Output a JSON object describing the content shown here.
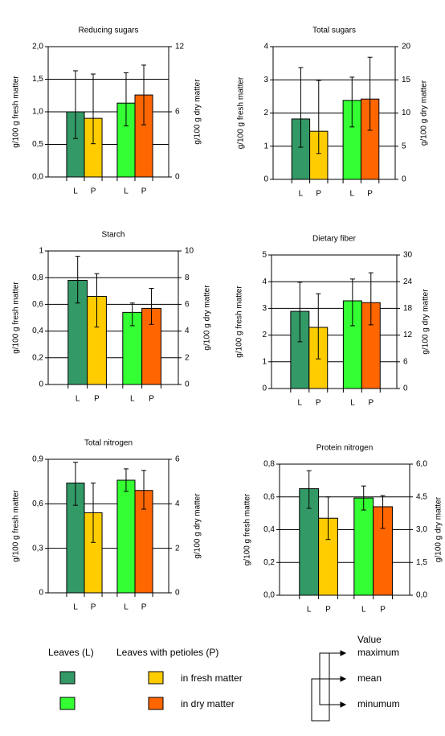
{
  "chart_data": [
    {
      "type": "bar",
      "title": "Reducing sugars",
      "ylabel": "g/100 g fresh matter",
      "y2label": "g/100 g dry matter",
      "categories": [
        "L",
        "P",
        "L",
        "P"
      ],
      "colors": [
        "#339966",
        "#ffcc00",
        "#33ff33",
        "#ff6600"
      ],
      "ylim": [
        0,
        2
      ],
      "yticks": [
        {
          "value": 0,
          "label": "0,0"
        },
        {
          "value": 0.5,
          "label": "0,5"
        },
        {
          "value": 1,
          "label": "1,0"
        },
        {
          "value": 1.5,
          "label": "1,5"
        },
        {
          "value": 2,
          "label": "2,0"
        }
      ],
      "y2lim": [
        0,
        12
      ],
      "y2ticks": [
        0,
        6,
        12
      ],
      "grid": true,
      "series": [
        {
          "axis": "y",
          "values": [
            1.0,
            0.9,
            null,
            null
          ],
          "low": [
            0.59,
            0.51,
            null,
            null
          ],
          "high": [
            1.63,
            1.58,
            null,
            null
          ]
        },
        {
          "axis": "y2",
          "values": [
            null,
            null,
            6.8,
            7.55
          ],
          "low": [
            null,
            null,
            4.7,
            4.8
          ],
          "high": [
            null,
            null,
            9.6,
            10.3
          ]
        }
      ]
    },
    {
      "type": "bar",
      "title": "Total sugars",
      "ylabel": "g/100 g fresh matter",
      "y2label": "g/100 g dry matter",
      "categories": [
        "L",
        "P",
        "L",
        "P"
      ],
      "colors": [
        "#339966",
        "#ffcc00",
        "#33ff33",
        "#ff6600"
      ],
      "ylim": [
        0,
        4
      ],
      "yticks": [
        0,
        1,
        2,
        3,
        4
      ],
      "y2lim": [
        0,
        20
      ],
      "y2ticks": [
        0,
        5,
        10,
        15,
        20
      ],
      "grid": true,
      "series": [
        {
          "axis": "y",
          "values": [
            1.82,
            1.45,
            null,
            null
          ],
          "low": [
            0.97,
            0.78,
            null,
            null
          ],
          "high": [
            3.37,
            2.98,
            null,
            null
          ]
        },
        {
          "axis": "y2",
          "values": [
            null,
            null,
            11.9,
            12.1
          ],
          "low": [
            null,
            null,
            7.9,
            7.4
          ],
          "high": [
            null,
            null,
            15.4,
            18.4
          ]
        }
      ]
    },
    {
      "type": "bar",
      "title": "Starch",
      "ylabel": "g/100 g fresh matter",
      "y2label": "g/100 g dry matter",
      "categories": [
        "L",
        "P",
        "L",
        "P"
      ],
      "colors": [
        "#339966",
        "#ffcc00",
        "#33ff33",
        "#ff6600"
      ],
      "ylim": [
        0,
        1
      ],
      "yticks": [
        0,
        {
          "value": 0.2,
          "label": "0,2"
        },
        {
          "value": 0.4,
          "label": "0,4"
        },
        {
          "value": 0.6,
          "label": "0,6"
        },
        {
          "value": 0.8,
          "label": "0,8"
        },
        1
      ],
      "y2lim": [
        0,
        10
      ],
      "y2ticks": [
        0,
        2,
        4,
        6,
        8,
        10
      ],
      "grid": true,
      "series": [
        {
          "axis": "y",
          "values": [
            0.78,
            0.66,
            null,
            null
          ],
          "low": [
            0.61,
            0.43,
            null,
            null
          ],
          "high": [
            0.96,
            0.83,
            null,
            null
          ]
        },
        {
          "axis": "y2",
          "values": [
            null,
            null,
            5.4,
            5.7
          ],
          "low": [
            null,
            null,
            4.4,
            4.5
          ],
          "high": [
            null,
            null,
            6.1,
            7.2
          ]
        }
      ]
    },
    {
      "type": "bar",
      "title": "Dietary fiber",
      "ylabel": "g/100 g fresh matter",
      "y2label": "g/100 g dry matter",
      "categories": [
        "L",
        "P",
        "L",
        "P"
      ],
      "colors": [
        "#339966",
        "#ffcc00",
        "#33ff33",
        "#ff6600"
      ],
      "ylim": [
        0,
        5
      ],
      "yticks": [
        0,
        1,
        2,
        3,
        4,
        5
      ],
      "y2lim": [
        0,
        30
      ],
      "y2ticks": [
        0,
        6,
        12,
        18,
        24,
        30
      ],
      "grid": true,
      "series": [
        {
          "axis": "y",
          "values": [
            2.89,
            2.29,
            null,
            null
          ],
          "low": [
            1.75,
            1.11,
            null,
            null
          ],
          "high": [
            3.98,
            3.55,
            null,
            null
          ]
        },
        {
          "axis": "y2",
          "values": [
            null,
            null,
            19.7,
            19.3
          ],
          "low": [
            null,
            null,
            14.1,
            14.3
          ],
          "high": [
            null,
            null,
            24.6,
            26.0
          ]
        }
      ]
    },
    {
      "type": "bar",
      "title": "Total nitrogen",
      "ylabel": "g/100 g fresh matter",
      "y2label": "g/100 g dry matter",
      "categories": [
        "L",
        "P",
        "L",
        "P"
      ],
      "colors": [
        "#339966",
        "#ffcc00",
        "#33ff33",
        "#ff6600"
      ],
      "ylim": [
        0,
        0.9
      ],
      "yticks": [
        0,
        {
          "value": 0.3,
          "label": "0,3"
        },
        {
          "value": 0.6,
          "label": "0,6"
        },
        {
          "value": 0.9,
          "label": "0,9"
        }
      ],
      "y2lim": [
        0,
        6
      ],
      "y2ticks": [
        0,
        2,
        4,
        6
      ],
      "grid": true,
      "series": [
        {
          "axis": "y",
          "values": [
            0.74,
            0.54,
            null,
            null
          ],
          "low": [
            0.59,
            0.34,
            null,
            null
          ],
          "high": [
            0.88,
            0.74,
            null,
            null
          ]
        },
        {
          "axis": "y2",
          "values": [
            null,
            null,
            5.06,
            4.6
          ],
          "low": [
            null,
            null,
            4.56,
            3.76
          ],
          "high": [
            null,
            null,
            5.57,
            5.5
          ]
        }
      ]
    },
    {
      "type": "bar",
      "title": "Protein nitrogen",
      "ylabel": "g/100 g fresh matter",
      "y2label": "g/100 g dry matter",
      "categories": [
        "L",
        "P",
        "L",
        "P"
      ],
      "colors": [
        "#339966",
        "#ffcc00",
        "#33ff33",
        "#ff6600"
      ],
      "ylim": [
        0,
        0.8
      ],
      "yticks": [
        {
          "value": 0,
          "label": "0,0"
        },
        {
          "value": 0.2,
          "label": "0,2"
        },
        {
          "value": 0.4,
          "label": "0,4"
        },
        {
          "value": 0.6,
          "label": "0,6"
        },
        {
          "value": 0.8,
          "label": "0,8"
        }
      ],
      "y2lim": [
        0,
        6
      ],
      "y2ticks": [
        {
          "value": 0,
          "label": "0,0"
        },
        {
          "value": 1.5,
          "label": "1,5"
        },
        {
          "value": 3,
          "label": "3,0"
        },
        {
          "value": 4.5,
          "label": "4,5"
        },
        {
          "value": 6,
          "label": "6,0"
        }
      ],
      "grid": true,
      "series": [
        {
          "axis": "y",
          "values": [
            0.65,
            0.47,
            null,
            null
          ],
          "low": [
            0.53,
            0.34,
            null,
            null
          ],
          "high": [
            0.76,
            0.6,
            null,
            null
          ]
        },
        {
          "axis": "y2",
          "values": [
            null,
            null,
            4.45,
            4.05
          ],
          "low": [
            null,
            null,
            3.9,
            3.06
          ],
          "high": [
            null,
            null,
            5.0,
            4.56
          ]
        }
      ]
    }
  ],
  "legend": {
    "leaves": "Leaves (L)",
    "petioles": "Leaves with petioles (P)",
    "fresh": {
      "label": "in fresh matter",
      "colors": [
        "#339966",
        "#ffcc00"
      ]
    },
    "dry": {
      "label": "in dry matter",
      "colors": [
        "#33ff33",
        "#ff6600"
      ]
    },
    "key": {
      "value": "Value",
      "maximum": "maximum",
      "mean": "mean",
      "minimum": "minumum"
    }
  }
}
